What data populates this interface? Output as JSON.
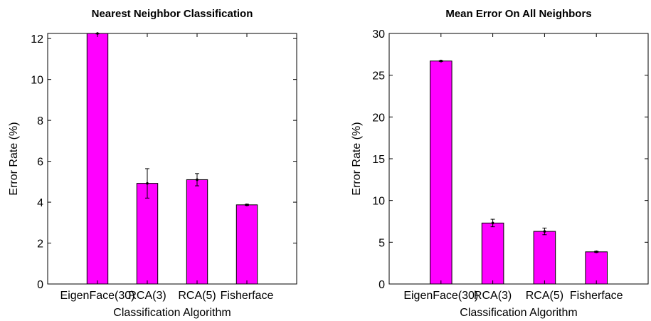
{
  "chart_data": [
    {
      "type": "bar",
      "title": "Nearest Neighbor Classification",
      "xlabel": "Classification Algorithm",
      "ylabel": "Error Rate (%)",
      "categories": [
        "EigenFace(30)",
        "RCA(3)",
        "RCA(5)",
        "Fisherface"
      ],
      "values": [
        12.25,
        4.92,
        5.1,
        3.87
      ],
      "errors": [
        0.02,
        0.72,
        0.3,
        0.03
      ],
      "ylim": [
        0,
        12.25
      ],
      "yticks": [
        0,
        2,
        4,
        6,
        8,
        10,
        12
      ],
      "grid": false,
      "bar_color": "#ff00ff"
    },
    {
      "type": "bar",
      "title": "Mean Error On All Neighbors",
      "xlabel": "Classification Algorithm",
      "ylabel": "Error Rate (%)",
      "categories": [
        "EigenFace(30)",
        "RCA(3)",
        "RCA(5)",
        "Fisherface"
      ],
      "values": [
        26.7,
        7.3,
        6.3,
        3.85
      ],
      "errors": [
        0.05,
        0.45,
        0.4,
        0.07
      ],
      "ylim": [
        0,
        30
      ],
      "yticks": [
        0,
        5,
        10,
        15,
        20,
        25,
        30
      ],
      "grid": false,
      "bar_color": "#ff00ff"
    }
  ]
}
